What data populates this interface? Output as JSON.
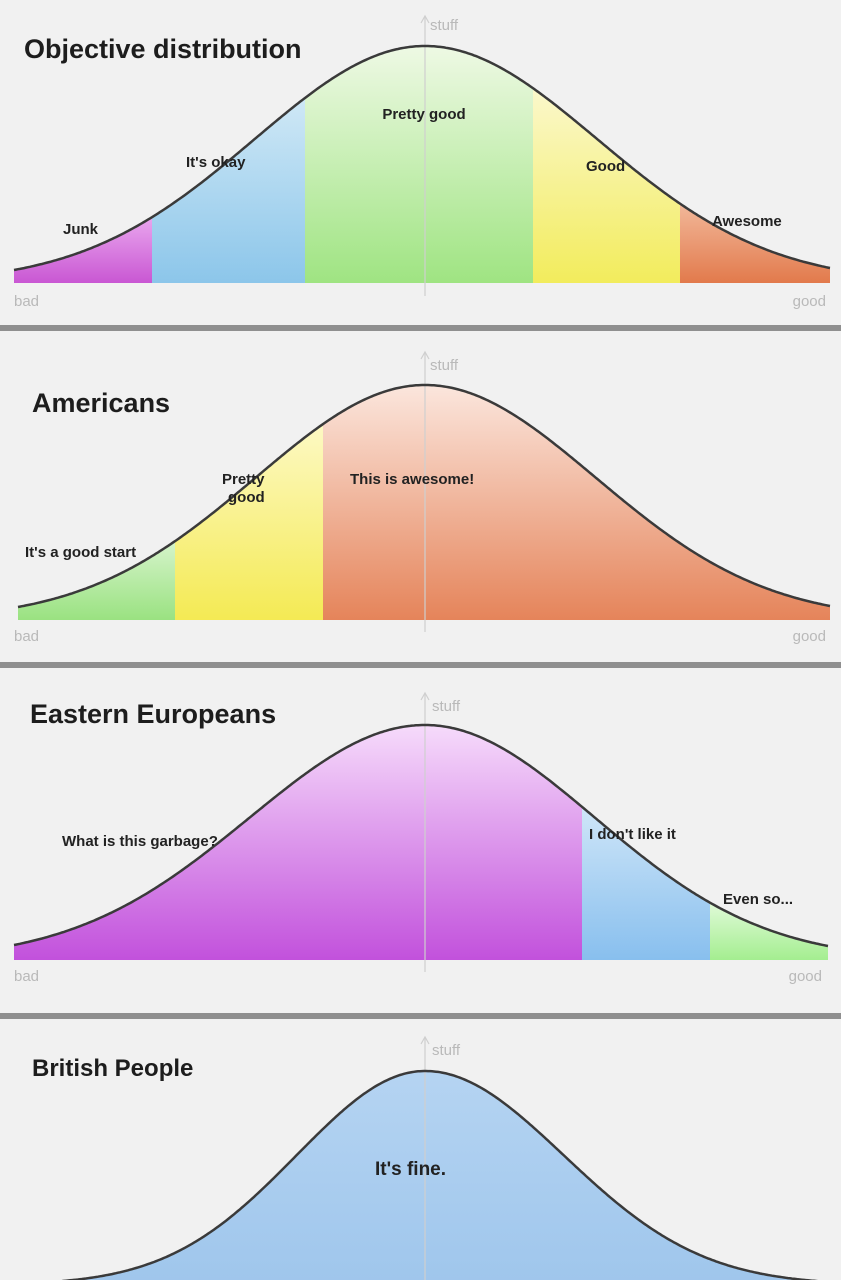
{
  "chart_data": [
    {
      "type": "area",
      "title": "Objective distribution",
      "x_axis": {
        "left_label": "bad",
        "right_label": "good"
      },
      "y_axis": {
        "label": "stuff"
      },
      "regions": [
        {
          "label": "Junk",
          "color": "#d46cdb"
        },
        {
          "label": "It's okay",
          "color": "#a3d3ee"
        },
        {
          "label": "Pretty good",
          "color": "#b3ea98"
        },
        {
          "label": "Good",
          "color": "#f4f078"
        },
        {
          "label": "Awesome",
          "color": "#e98a60"
        }
      ]
    },
    {
      "type": "area",
      "title": "Americans",
      "x_axis": {
        "left_label": "bad",
        "right_label": "good"
      },
      "y_axis": {
        "label": "stuff"
      },
      "regions": [
        {
          "label": "It's a good start",
          "color": "#a9e794"
        },
        {
          "label": "Pretty good",
          "color": "#f6ef78"
        },
        {
          "label": "This is awesome!",
          "color": "#ea9c78"
        }
      ]
    },
    {
      "type": "area",
      "title": "Eastern Europeans",
      "x_axis": {
        "left_label": "bad",
        "right_label": "good"
      },
      "y_axis": {
        "label": "stuff"
      },
      "regions": [
        {
          "label": "What is this garbage?",
          "color": "#d47be4"
        },
        {
          "label": "I don't like it",
          "color": "#9fcdf0"
        },
        {
          "label": "Even so...",
          "color": "#b0f0a0"
        }
      ]
    },
    {
      "type": "area",
      "title": "British People",
      "y_axis": {
        "label": "stuff"
      },
      "regions": [
        {
          "label": "It's fine.",
          "color": "#a8cbee"
        }
      ]
    }
  ]
}
